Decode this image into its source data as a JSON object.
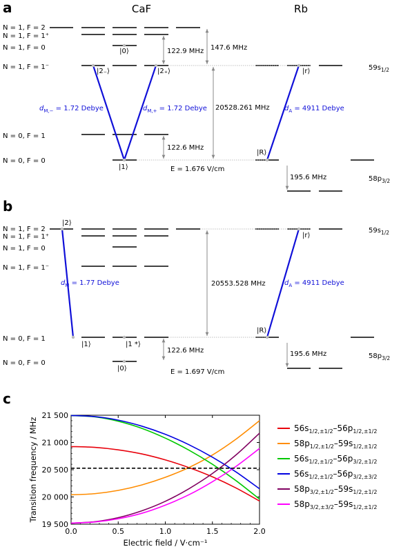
{
  "panels": {
    "a": "a",
    "b": "b",
    "c": "c"
  },
  "headers": {
    "caf": "CaF",
    "rb": "Rb"
  },
  "panel_a": {
    "state_labels": [
      "N = 1, F = 2",
      "N = 1, F = 1⁺",
      "N = 1, F = 0",
      "N = 1, F = 1⁻",
      "N = 0, F = 1",
      "N = 0, F = 0"
    ],
    "kets": {
      "k0": "|0⟩",
      "k2m": "|2₋⟩",
      "k2p": "|2₊⟩",
      "k1": "|1⟩",
      "kR": "|R⟩",
      "kr": "|r⟩"
    },
    "freqs": {
      "f1": "122.9 MHz",
      "f2": "147.6 MHz",
      "f3": "20528.261 MHz",
      "f4": "122.6 MHz",
      "f5": "195.6 MHz"
    },
    "field": "E = 1.676 V/cm",
    "dipoles": {
      "dm_minus": "d",
      "dm_minus_sub": "M,−",
      "dm_minus_val": " = 1.72 Debye",
      "dm_plus": "d",
      "dm_plus_sub": "M,+",
      "dm_plus_val": " = 1.72 Debye",
      "da": "d",
      "da_sub": "A",
      "da_val": " = 4911 Debye"
    },
    "rb_states": {
      "upper": "59s",
      "upper_sub": "1/2",
      "lower": "58p",
      "lower_sub": "3/2"
    }
  },
  "panel_b": {
    "state_labels": [
      "N = 1, F = 2",
      "N = 1, F = 1⁺",
      "N = 1, F = 0",
      "N = 1, F = 1⁻",
      "N = 0, F = 1",
      "N = 0, F = 0"
    ],
    "kets": {
      "k2": "|2⟩",
      "k1": "|1⟩",
      "k1s": "|1 *⟩",
      "k0": "|0⟩",
      "kR": "|R⟩",
      "kr": "|r⟩"
    },
    "freqs": {
      "f1": "20553.528 MHz",
      "f2": "122.6 MHz",
      "f3": "195.6 MHz"
    },
    "field": "E = 1.697 V/cm",
    "dipoles": {
      "dm": "d",
      "dm_sub": "M",
      "dm_val": " = 1.77 Debye",
      "da": "d",
      "da_sub": "A",
      "da_val": " = 4911 Debye"
    },
    "rb_states": {
      "upper": "59s",
      "upper_sub": "1/2",
      "lower": "58p",
      "lower_sub": "3/2"
    }
  },
  "chart_data": {
    "type": "line",
    "xlabel": "Electric field / V·cm⁻¹",
    "ylabel": "Transition frequency / MHz",
    "xlim": [
      0,
      2.0
    ],
    "ylim": [
      19500,
      21500
    ],
    "xticks": [
      0.0,
      0.5,
      1.0,
      1.5,
      2.0
    ],
    "xtick_labels": [
      "0.0",
      "0.5",
      "1.0",
      "1.5",
      "2.0"
    ],
    "yticks": [
      19500,
      20000,
      20500,
      21000,
      21500
    ],
    "ytick_labels": [
      "19 500",
      "20 000",
      "20 500",
      "21 000",
      "21 500"
    ],
    "reference_line": 20528,
    "grid": false,
    "legend_position": "right",
    "series": [
      {
        "name": "56s1/2,±1/2–56p1/2,±1/2",
        "label_main": [
          "56s",
          "–56p",
          ""
        ],
        "label_subs": [
          "1/2,±1/2",
          "1/2,±1/2"
        ],
        "color": "#e8000b",
        "x": [
          0,
          0.25,
          0.5,
          0.75,
          1.0,
          1.25,
          1.5,
          1.75,
          2.0
        ],
        "y": [
          20925,
          20910,
          20865,
          20790,
          20680,
          20540,
          20370,
          20165,
          19925
        ]
      },
      {
        "name": "58p1/2,±1/2–59s1/2,±1/2",
        "label_main": [
          "58p",
          "–59s",
          ""
        ],
        "label_subs": [
          "1/2,±1/2",
          "1/2,±1/2"
        ],
        "color": "#ff8c00",
        "x": [
          0,
          0.25,
          0.5,
          0.75,
          1.0,
          1.25,
          1.5,
          1.75,
          2.0
        ],
        "y": [
          20040,
          20060,
          20120,
          20220,
          20360,
          20540,
          20770,
          21060,
          21400
        ]
      },
      {
        "name": "56s1/2,±1/2–56p3/2,±1/2",
        "label_main": [
          "56s",
          "–56p",
          ""
        ],
        "label_subs": [
          "1/2,±1/2",
          "3/2,±1/2"
        ],
        "color": "#00c800",
        "x": [
          0,
          0.25,
          0.5,
          0.75,
          1.0,
          1.25,
          1.5,
          1.75,
          2.0
        ],
        "y": [
          21495,
          21470,
          21390,
          21260,
          21080,
          20860,
          20600,
          20300,
          19960
        ]
      },
      {
        "name": "56s1/2,±1/2–56p3/2,±3/2",
        "label_main": [
          "56s",
          "–56p",
          ""
        ],
        "label_subs": [
          "1/2,±1/2",
          "3/2,±3/2"
        ],
        "color": "#0000e0",
        "x": [
          0,
          0.25,
          0.5,
          0.75,
          1.0,
          1.25,
          1.5,
          1.75,
          2.0
        ],
        "y": [
          21495,
          21475,
          21410,
          21300,
          21150,
          20960,
          20730,
          20460,
          20150
        ]
      },
      {
        "name": "58p3/2,±1/2–59s1/2,±1/2",
        "label_main": [
          "58p",
          "–59s",
          ""
        ],
        "label_subs": [
          "3/2,±1/2",
          "1/2,±1/2"
        ],
        "color": "#800060",
        "x": [
          0,
          0.25,
          0.5,
          0.75,
          1.0,
          1.25,
          1.5,
          1.75,
          2.0
        ],
        "y": [
          19520,
          19545,
          19620,
          19745,
          19920,
          20150,
          20430,
          20770,
          21170
        ]
      },
      {
        "name": "58p3/2,±3/2–59s1/2,±1/2",
        "label_main": [
          "58p",
          "–59s",
          ""
        ],
        "label_subs": [
          "3/2,±3/2",
          "1/2,±1/2"
        ],
        "color": "#ff00ff",
        "x": [
          0,
          0.25,
          0.5,
          0.75,
          1.0,
          1.25,
          1.5,
          1.75,
          2.0
        ],
        "y": [
          19520,
          19540,
          19600,
          19700,
          19850,
          20040,
          20280,
          20560,
          20890
        ]
      }
    ]
  }
}
